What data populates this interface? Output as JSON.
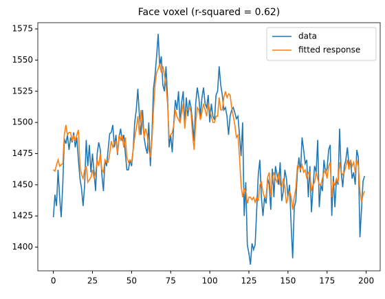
{
  "chart_data": {
    "type": "line",
    "title": "Face voxel (r-squared = 0.62)",
    "x": [
      0,
      1,
      2,
      3,
      4,
      5,
      6,
      7,
      8,
      9,
      10,
      11,
      12,
      13,
      14,
      15,
      16,
      17,
      18,
      19,
      20,
      21,
      22,
      23,
      24,
      25,
      26,
      27,
      28,
      29,
      30,
      31,
      32,
      33,
      34,
      35,
      36,
      37,
      38,
      39,
      40,
      41,
      42,
      43,
      44,
      45,
      46,
      47,
      48,
      49,
      50,
      51,
      52,
      53,
      54,
      55,
      56,
      57,
      58,
      59,
      60,
      61,
      62,
      63,
      64,
      65,
      66,
      67,
      68,
      69,
      70,
      71,
      72,
      73,
      74,
      75,
      76,
      77,
      78,
      79,
      80,
      81,
      82,
      83,
      84,
      85,
      86,
      87,
      88,
      89,
      90,
      91,
      92,
      93,
      94,
      95,
      96,
      97,
      98,
      99,
      100,
      101,
      102,
      103,
      104,
      105,
      106,
      107,
      108,
      109,
      110,
      111,
      112,
      113,
      114,
      115,
      116,
      117,
      118,
      119,
      120,
      121,
      122,
      123,
      124,
      125,
      126,
      127,
      128,
      129,
      130,
      131,
      132,
      133,
      134,
      135,
      136,
      137,
      138,
      139,
      140,
      141,
      142,
      143,
      144,
      145,
      146,
      147,
      148,
      149,
      150,
      151,
      152,
      153,
      154,
      155,
      156,
      157,
      158,
      159,
      160,
      161,
      162,
      163,
      164,
      165,
      166,
      167,
      168,
      169,
      170,
      171,
      172,
      173,
      174,
      175,
      176,
      177,
      178,
      179,
      180,
      181,
      182,
      183,
      184,
      185,
      186,
      187,
      188,
      189,
      190,
      191,
      192,
      193,
      194,
      195,
      196,
      197,
      198,
      199
    ],
    "series": [
      {
        "name": "data",
        "color": "#1f77b4",
        "values": [
          1424,
          1442,
          1433,
          1462,
          1440,
          1424,
          1450,
          1487,
          1483,
          1490,
          1478,
          1488,
          1484,
          1492,
          1480,
          1488,
          1470,
          1455,
          1447,
          1433,
          1450,
          1486,
          1465,
          1482,
          1460,
          1475,
          1460,
          1445,
          1475,
          1484,
          1478,
          1458,
          1445,
          1470,
          1465,
          1478,
          1491,
          1492,
          1498,
          1480,
          1490,
          1474,
          1488,
          1495,
          1485,
          1490,
          1475,
          1462,
          1462,
          1470,
          1465,
          1478,
          1500,
          1510,
          1527,
          1505,
          1490,
          1510,
          1488,
          1480,
          1475,
          1500,
          1465,
          1490,
          1527,
          1538,
          1553,
          1571,
          1545,
          1553,
          1530,
          1525,
          1545,
          1520,
          1480,
          1490,
          1476,
          1500,
          1518,
          1510,
          1525,
          1500,
          1516,
          1525,
          1500,
          1520,
          1505,
          1518,
          1512,
          1500,
          1485,
          1515,
          1528,
          1520,
          1505,
          1520,
          1528,
          1515,
          1512,
          1522,
          1500,
          1515,
          1505,
          1502,
          1522,
          1525,
          1545,
          1530,
          1522,
          1510,
          1512,
          1505,
          1490,
          1505,
          1510,
          1512,
          1508,
          1503,
          1505,
          1490,
          1473,
          1500,
          1425,
          1452,
          1402,
          1395,
          1386,
          1403,
          1398,
          1402,
          1430,
          1458,
          1470,
          1440,
          1425,
          1440,
          1435,
          1455,
          1450,
          1430,
          1463,
          1440,
          1465,
          1458,
          1450,
          1468,
          1437,
          1445,
          1462,
          1455,
          1440,
          1450,
          1418,
          1391,
          1432,
          1437,
          1460,
          1472,
          1460,
          1488,
          1478,
          1467,
          1470,
          1440,
          1465,
          1428,
          1448,
          1465,
          1460,
          1486,
          1432,
          1450,
          1445,
          1470,
          1460,
          1463,
          1478,
          1482,
          1425,
          1457,
          1432,
          1455,
          1450,
          1495,
          1460,
          1448,
          1465,
          1470,
          1480,
          1465,
          1470,
          1455,
          1460,
          1450,
          1478,
          1472,
          1408,
          1430,
          1453,
          1457
        ]
      },
      {
        "name": "fitted response",
        "color": "#ff7f0e",
        "values": [
          1462,
          1461,
          1466,
          1470,
          1465,
          1466,
          1467,
          1490,
          1498,
          1490,
          1492,
          1492,
          1485,
          1490,
          1485,
          1490,
          1494,
          1465,
          1458,
          1455,
          1462,
          1465,
          1452,
          1454,
          1456,
          1462,
          1455,
          1460,
          1470,
          1465,
          1475,
          1462,
          1460,
          1470,
          1468,
          1468,
          1475,
          1485,
          1480,
          1484,
          1485,
          1475,
          1490,
          1486,
          1490,
          1480,
          1488,
          1472,
          1468,
          1470,
          1468,
          1478,
          1488,
          1495,
          1505,
          1490,
          1510,
          1500,
          1488,
          1495,
          1490,
          1478,
          1472,
          1485,
          1510,
          1530,
          1540,
          1543,
          1547,
          1540,
          1545,
          1538,
          1530,
          1515,
          1488,
          1490,
          1492,
          1498,
          1510,
          1505,
          1502,
          1500,
          1508,
          1515,
          1495,
          1510,
          1510,
          1512,
          1508,
          1490,
          1478,
          1500,
          1512,
          1510,
          1502,
          1508,
          1515,
          1510,
          1505,
          1515,
          1510,
          1505,
          1500,
          1500,
          1505,
          1505,
          1520,
          1510,
          1510,
          1520,
          1525,
          1520,
          1523,
          1522,
          1512,
          1505,
          1498,
          1488,
          1490,
          1472,
          1450,
          1440,
          1447,
          1445,
          1435,
          1440,
          1440,
          1438,
          1440,
          1436,
          1440,
          1437,
          1450,
          1452,
          1444,
          1440,
          1440,
          1456,
          1460,
          1440,
          1455,
          1460,
          1455,
          1452,
          1460,
          1450,
          1448,
          1455,
          1448,
          1435,
          1440,
          1445,
          1440,
          1430,
          1440,
          1447,
          1465,
          1465,
          1462,
          1466,
          1460,
          1462,
          1455,
          1460,
          1460,
          1445,
          1450,
          1452,
          1460,
          1455,
          1450,
          1450,
          1455,
          1460,
          1462,
          1455,
          1465,
          1468,
          1440,
          1452,
          1450,
          1455,
          1452,
          1468,
          1460,
          1458,
          1460,
          1465,
          1470,
          1462,
          1470,
          1465,
          1468,
          1460,
          1470,
          1465,
          1445,
          1436,
          1442,
          1445
        ]
      }
    ],
    "xlim": [
      -9.95,
      208.95
    ],
    "xticks": [
      0,
      25,
      50,
      75,
      100,
      125,
      150,
      175,
      200
    ],
    "ylim": [
      1381,
      1580
    ],
    "yticks": [
      1400,
      1425,
      1450,
      1475,
      1500,
      1525,
      1550,
      1575
    ],
    "grid": false,
    "legend": "upper right"
  }
}
